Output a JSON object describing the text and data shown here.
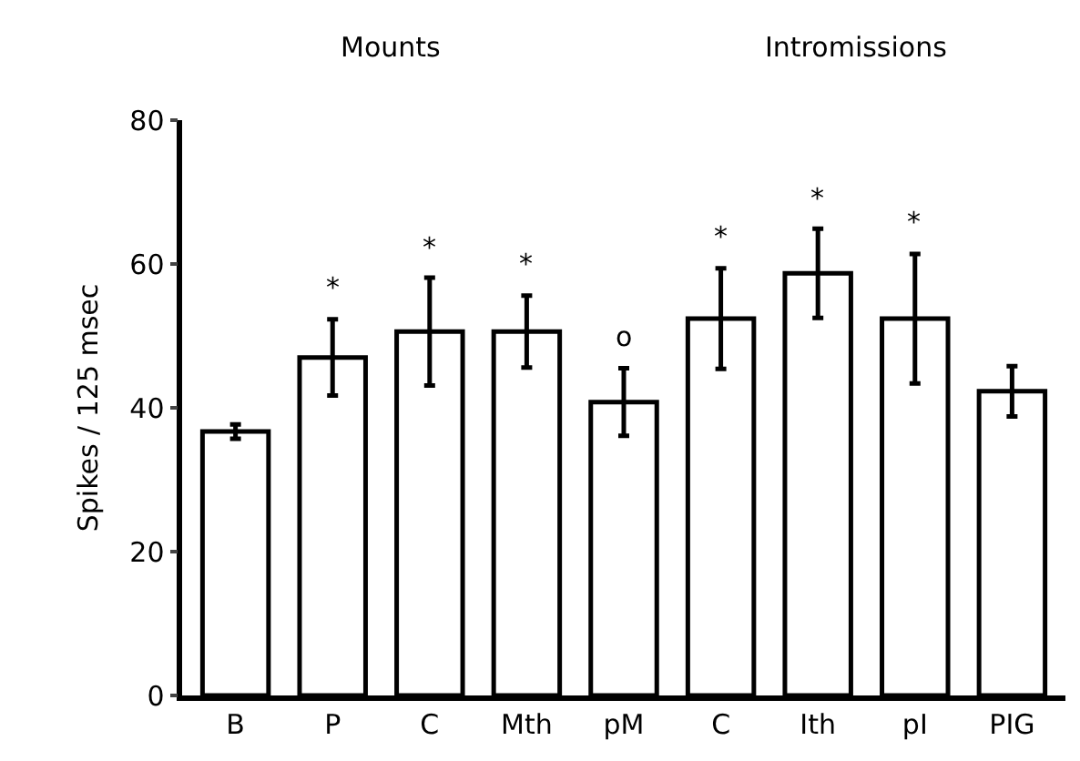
{
  "chart_data": {
    "type": "bar",
    "ylabel": "Spikes / 125 msec",
    "categories": [
      "B",
      "P",
      "C",
      "Mth",
      "pM",
      "C",
      "Ith",
      "pI",
      "PIG"
    ],
    "values": [
      36.7,
      47,
      50.6,
      50.6,
      40.8,
      52.4,
      58.7,
      52.4,
      42.3
    ],
    "errors": [
      1,
      5.3,
      7.5,
      5,
      4.7,
      7,
      6.2,
      9,
      3.5
    ],
    "value_labels": [
      null,
      "*",
      "*",
      "*",
      "o",
      "*",
      "*",
      "*",
      null
    ],
    "color": "#ffffff",
    "annotations": [
      "Mounts",
      "Intromissions"
    ],
    "ylim": [
      0,
      80
    ],
    "yticks": [
      0,
      20,
      40,
      60,
      80
    ],
    "grid": false
  }
}
